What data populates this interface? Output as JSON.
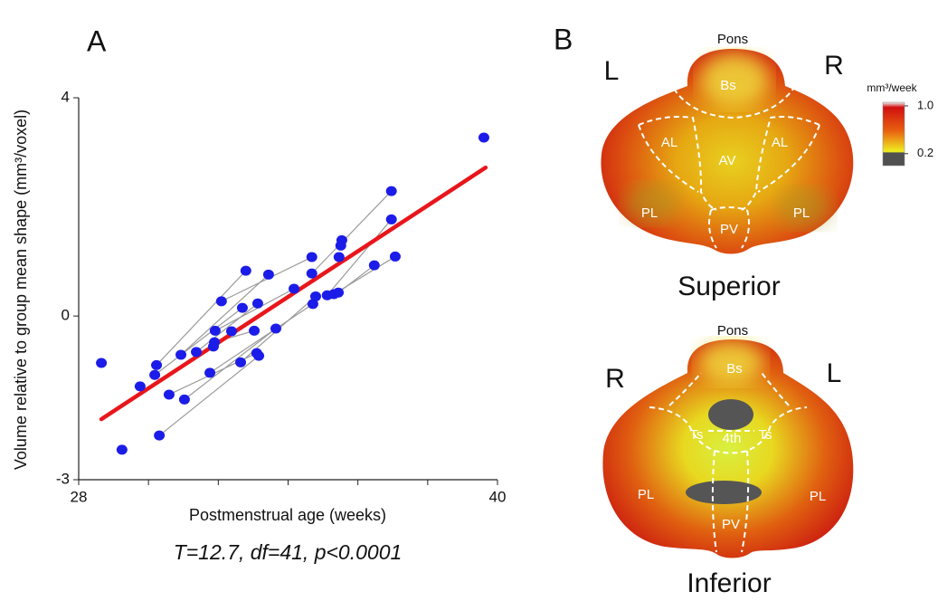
{
  "chart_data": {
    "type": "scatter",
    "panel_label": "A",
    "x_label": "Postmenstrual age (weeks)",
    "y_label": "Volume relative to group mean shape (mm³/voxel)",
    "annotation": "T=12.7, df=41, p<0.0001",
    "xlim": [
      28,
      40
    ],
    "ylim": [
      -3,
      4
    ],
    "xticks": [
      28,
      40
    ],
    "x_minor_ticks": [
      30,
      32,
      34,
      36,
      38
    ],
    "yticks": [
      -3,
      0,
      4
    ],
    "color": "#1c1ce8",
    "link_color": "#9a9a9a",
    "subjects": [
      {
        "x": [
          28.65
        ],
        "y": [
          -0.86
        ]
      },
      {
        "x": [
          29.24
        ],
        "y": [
          -2.45
        ]
      },
      {
        "x": [
          29.76
        ],
        "y": [
          -1.29
        ]
      },
      {
        "x": [
          39.61
        ],
        "y": [
          3.27
        ]
      },
      {
        "x": [
          30.23,
          32.79
        ],
        "y": [
          -0.9,
          0.83
        ]
      },
      {
        "x": [
          30.18,
          32.69
        ],
        "y": [
          -1.08,
          0.15
        ]
      },
      {
        "x": [
          30.31,
          33.16
        ],
        "y": [
          -2.19,
          -0.73
        ]
      },
      {
        "x": [
          30.59,
          33.1
        ],
        "y": [
          -1.44,
          -0.68
        ]
      },
      {
        "x": [
          30.93,
          33.44
        ],
        "y": [
          -0.71,
          0.76
        ]
      },
      {
        "x": [
          31.03,
          33.65
        ],
        "y": [
          -1.53,
          -0.23
        ]
      },
      {
        "x": [
          31.37,
          33.13
        ],
        "y": [
          -0.66,
          0.23
        ]
      },
      {
        "x": [
          31.76,
          34.71
        ],
        "y": [
          -1.04,
          0.22
        ]
      },
      {
        "x": [
          31.86,
          32.38
        ],
        "y": [
          -0.56,
          -0.28
        ]
      },
      {
        "x": [
          31.89,
          33.03
        ],
        "y": [
          -0.48,
          -0.27
        ]
      },
      {
        "x": [
          31.91,
          34.17
        ],
        "y": [
          -0.27,
          0.5
        ]
      },
      {
        "x": [
          32.09,
          34.68
        ],
        "y": [
          0.27,
          1.08
        ]
      },
      {
        "x": [
          32.64,
          34.79
        ],
        "y": [
          -0.85,
          0.36
        ]
      },
      {
        "x": [
          34.68,
          36.96
        ],
        "y": [
          0.78,
          2.29
        ]
      },
      {
        "x": [
          35.12,
          36.96
        ],
        "y": [
          0.38,
          1.77
        ]
      },
      {
        "x": [
          35.31,
          37.07
        ],
        "y": [
          0.4,
          1.09
        ]
      },
      {
        "x": [
          35.44,
          36.47
        ],
        "y": [
          0.43,
          0.93
        ]
      },
      {
        "x": [
          35.46
        ],
        "y": [
          1.08
        ]
      },
      {
        "x": [
          35.51,
          35.54
        ],
        "y": [
          1.29,
          1.39
        ]
      }
    ],
    "fit": {
      "color": "#e8161b",
      "x": [
        28.65,
        39.66
      ],
      "y": [
        -1.89,
        2.72
      ]
    }
  },
  "panel_b": {
    "label": "B",
    "superior": {
      "title": "Superior",
      "left": "L",
      "right": "R",
      "labels": [
        "Pons",
        "Bs",
        "AL",
        "AV",
        "AL",
        "PL",
        "PV",
        "PL"
      ]
    },
    "inferior": {
      "title": "Inferior",
      "left": "R",
      "right": "L",
      "labels": [
        "Pons",
        "Bs",
        "Ts",
        "4th",
        "Ts",
        "PL",
        "PV",
        "PL"
      ]
    },
    "colorbar": {
      "title": "mm³/week",
      "lim": [
        0,
        1.06
      ],
      "ticks": [
        {
          "value": 1.0,
          "label": "1.0"
        },
        {
          "value": 0.2,
          "label": "0.2"
        }
      ]
    }
  }
}
